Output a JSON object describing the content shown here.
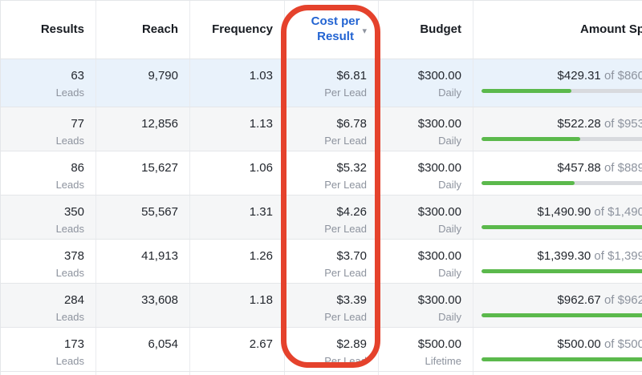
{
  "header": {
    "results": "Results",
    "reach": "Reach",
    "frequency": "Frequency",
    "cost_per_result_line1": "Cost per",
    "cost_per_result_line2": "Result",
    "sort_icon": "▾",
    "budget": "Budget",
    "amount_spent": "Amount Sp"
  },
  "rows": [
    {
      "results": "63",
      "results_sub": "Leads",
      "reach": "9,790",
      "frequency": "1.03",
      "cost": "$6.81",
      "cost_sub": "Per Lead",
      "budget": "$300.00",
      "budget_sub": "Daily",
      "spent": "$429.31",
      "spent_of": " of $860",
      "progress_pct": 50
    },
    {
      "results": "77",
      "results_sub": "Leads",
      "reach": "12,856",
      "frequency": "1.13",
      "cost": "$6.78",
      "cost_sub": "Per Lead",
      "budget": "$300.00",
      "budget_sub": "Daily",
      "spent": "$522.28",
      "spent_of": " of $953",
      "progress_pct": 55
    },
    {
      "results": "86",
      "results_sub": "Leads",
      "reach": "15,627",
      "frequency": "1.06",
      "cost": "$5.32",
      "cost_sub": "Per Lead",
      "budget": "$300.00",
      "budget_sub": "Daily",
      "spent": "$457.88",
      "spent_of": " of $889",
      "progress_pct": 52
    },
    {
      "results": "350",
      "results_sub": "Leads",
      "reach": "55,567",
      "frequency": "1.31",
      "cost": "$4.26",
      "cost_sub": "Per Lead",
      "budget": "$300.00",
      "budget_sub": "Daily",
      "spent": "$1,490.90",
      "spent_of": " of $1,490",
      "progress_pct": 100
    },
    {
      "results": "378",
      "results_sub": "Leads",
      "reach": "41,913",
      "frequency": "1.26",
      "cost": "$3.70",
      "cost_sub": "Per Lead",
      "budget": "$300.00",
      "budget_sub": "Daily",
      "spent": "$1,399.30",
      "spent_of": " of $1,399",
      "progress_pct": 100
    },
    {
      "results": "284",
      "results_sub": "Leads",
      "reach": "33,608",
      "frequency": "1.18",
      "cost": "$3.39",
      "cost_sub": "Per Lead",
      "budget": "$300.00",
      "budget_sub": "Daily",
      "spent": "$962.67",
      "spent_of": " of $962",
      "progress_pct": 100
    },
    {
      "results": "173",
      "results_sub": "Leads",
      "reach": "6,054",
      "frequency": "2.67",
      "cost": "$2.89",
      "cost_sub": "Per Lead",
      "budget": "$500.00",
      "budget_sub": "Lifetime",
      "spent": "$500.00",
      "spent_of": " of $500",
      "progress_pct": 100
    }
  ],
  "colors": {
    "sorted_column_blue": "#2364d2",
    "annotation_red": "#e5422c",
    "progress_green": "#5bb94c",
    "progress_track_gray": "#d8dade",
    "selected_row_blue": "#e9f2fb",
    "stripe_row_gray": "#f5f6f7"
  }
}
